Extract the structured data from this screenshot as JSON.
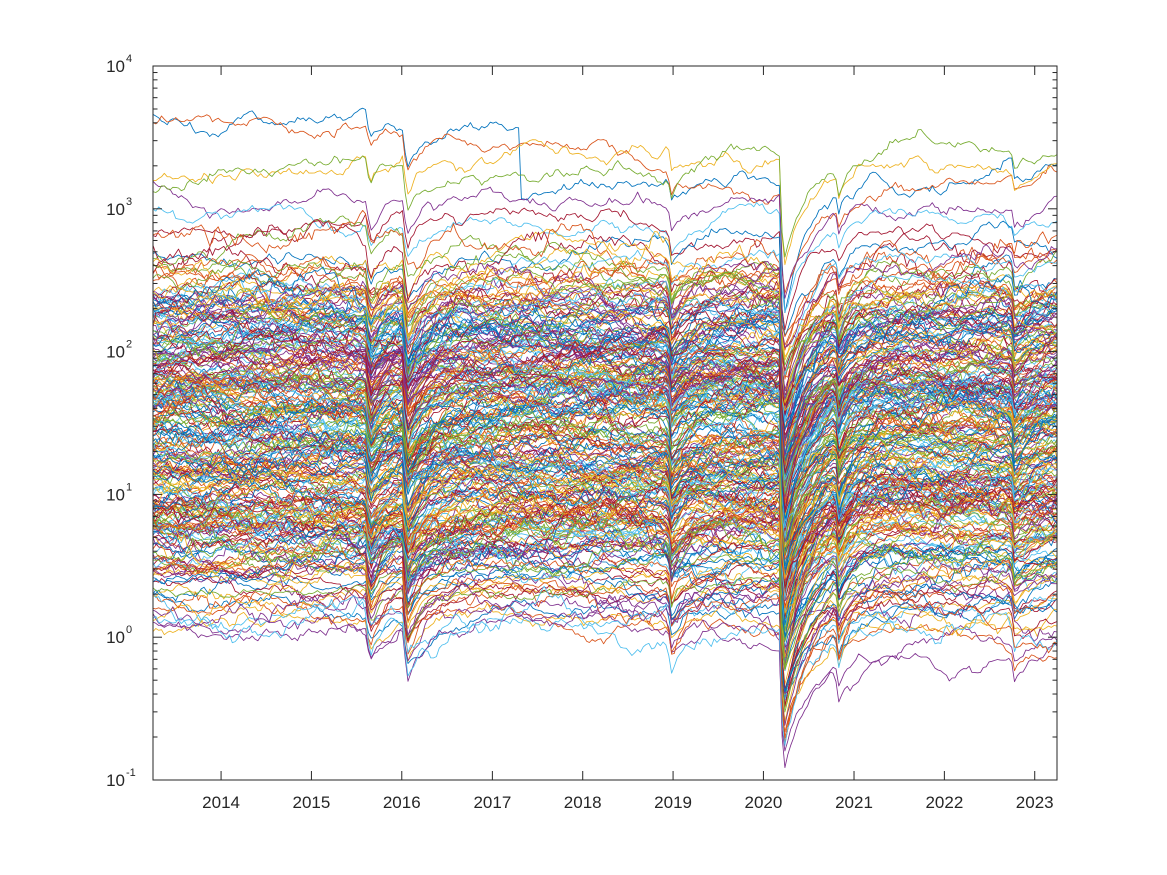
{
  "chart_data": {
    "type": "line",
    "title": "",
    "xlabel": "",
    "ylabel": "",
    "x_range": [
      "2013-04-01",
      "2023-04-01"
    ],
    "y_scale": "log",
    "ylim": [
      0.1,
      10000
    ],
    "x_ticks": [
      "2014",
      "2015",
      "2016",
      "2017",
      "2018",
      "2019",
      "2020",
      "2021",
      "2022",
      "2023"
    ],
    "y_ticks": [
      {
        "value": 0.1,
        "base": "10",
        "exp": "-1"
      },
      {
        "value": 1,
        "base": "10",
        "exp": "0"
      },
      {
        "value": 10,
        "base": "10",
        "exp": "1"
      },
      {
        "value": 100,
        "base": "10",
        "exp": "2"
      },
      {
        "value": 1000,
        "base": "10",
        "exp": "3"
      },
      {
        "value": 10000,
        "base": "10",
        "exp": "4"
      }
    ],
    "grid": false,
    "legend": "none",
    "series_colors": [
      "#0072BD",
      "#D95319",
      "#EDB120",
      "#7E2F8E",
      "#77AC30",
      "#4DBEEE",
      "#A2142F"
    ],
    "series": [
      {
        "start": 4500,
        "end": 5400,
        "events": [
          {
            "date": "2017-04-20",
            "factor": 0.33
          },
          {
            "date": "2020-03-20",
            "factor": 0.6,
            "recover": true
          }
        ]
      },
      {
        "start": 4000,
        "end": 1500
      },
      {
        "start": 1700,
        "end": 2500
      },
      {
        "start": 1500,
        "end": 1400
      },
      {
        "start": 1300,
        "end": 2400
      },
      {
        "start": 1000,
        "end": 800
      },
      {
        "start": 700,
        "end": 600
      },
      {
        "start": 500,
        "end": 700
      },
      {
        "start": 350,
        "end": 400
      },
      {
        "start": 250,
        "end": 300
      },
      {
        "start": 180,
        "end": 250
      },
      {
        "start": 120,
        "end": 150
      },
      {
        "start": 90,
        "end": 120
      },
      {
        "start": 60,
        "end": 80
      },
      {
        "start": 40,
        "end": 50
      },
      {
        "start": 25,
        "end": 30
      },
      {
        "start": 15,
        "end": 18
      },
      {
        "start": 10,
        "end": 12
      },
      {
        "start": 6,
        "end": 7
      },
      {
        "start": 4,
        "end": 4
      },
      {
        "start": 3,
        "end": 2.5
      },
      {
        "start": 2,
        "end": 1.5
      },
      {
        "start": 1.5,
        "end": 1.2
      },
      {
        "start": 1.1,
        "end": 1.0
      },
      {
        "start": 1.4,
        "end": 0.9
      }
    ],
    "series_count_note": "hundreds of unlabeled price series"
  }
}
